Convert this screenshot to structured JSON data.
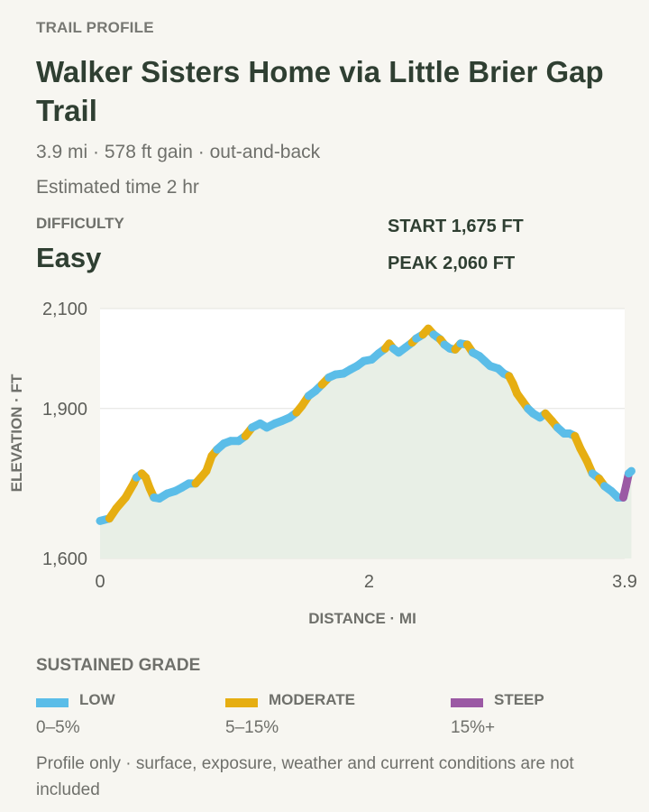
{
  "header": {
    "eyebrow": "TRAIL PROFILE",
    "title": "Walker Sisters Home via Little Brier Gap Trail",
    "summary": "3.9 mi · 578 ft gain · out-and-back",
    "time": "Estimated time 2 hr"
  },
  "difficulty": {
    "label": "DIFFICULTY",
    "value": "Easy"
  },
  "stats": {
    "start": "START 1,675 FT",
    "peak": "PEAK 2,060 FT"
  },
  "chart_data": {
    "type": "line",
    "title": "",
    "xlabel": "DISTANCE · MI",
    "ylabel": "ELEVATION · FT",
    "xlim": [
      0,
      3.9
    ],
    "ylim": [
      1600,
      2100
    ],
    "x_ticks": [
      0,
      2,
      3.9
    ],
    "x_tick_labels": [
      "0",
      "2",
      "3.9"
    ],
    "y_ticks": [
      1600,
      1900,
      2100
    ],
    "y_tick_labels": [
      "1,600",
      "1,900",
      "2,100"
    ],
    "grid": true,
    "area_fill": true,
    "series": [
      {
        "values": [
          {
            "x": 0.0,
            "y": 1675
          },
          {
            "x": 0.07,
            "y": 1680
          },
          {
            "x": 0.12,
            "y": 1700
          },
          {
            "x": 0.19,
            "y": 1722
          },
          {
            "x": 0.25,
            "y": 1750
          },
          {
            "x": 0.27,
            "y": 1762
          },
          {
            "x": 0.31,
            "y": 1770
          },
          {
            "x": 0.34,
            "y": 1762
          },
          {
            "x": 0.37,
            "y": 1740
          },
          {
            "x": 0.4,
            "y": 1722
          },
          {
            "x": 0.44,
            "y": 1720
          },
          {
            "x": 0.5,
            "y": 1730
          },
          {
            "x": 0.56,
            "y": 1735
          },
          {
            "x": 0.61,
            "y": 1742
          },
          {
            "x": 0.66,
            "y": 1750
          },
          {
            "x": 0.71,
            "y": 1750
          },
          {
            "x": 0.75,
            "y": 1762
          },
          {
            "x": 0.79,
            "y": 1775
          },
          {
            "x": 0.83,
            "y": 1805
          },
          {
            "x": 0.87,
            "y": 1818
          },
          {
            "x": 0.92,
            "y": 1830
          },
          {
            "x": 0.97,
            "y": 1835
          },
          {
            "x": 1.03,
            "y": 1835
          },
          {
            "x": 1.08,
            "y": 1845
          },
          {
            "x": 1.13,
            "y": 1862
          },
          {
            "x": 1.19,
            "y": 1870
          },
          {
            "x": 1.24,
            "y": 1862
          },
          {
            "x": 1.3,
            "y": 1870
          },
          {
            "x": 1.35,
            "y": 1875
          },
          {
            "x": 1.41,
            "y": 1882
          },
          {
            "x": 1.46,
            "y": 1892
          },
          {
            "x": 1.5,
            "y": 1905
          },
          {
            "x": 1.55,
            "y": 1925
          },
          {
            "x": 1.6,
            "y": 1935
          },
          {
            "x": 1.65,
            "y": 1948
          },
          {
            "x": 1.7,
            "y": 1962
          },
          {
            "x": 1.75,
            "y": 1968
          },
          {
            "x": 1.81,
            "y": 1970
          },
          {
            "x": 1.86,
            "y": 1978
          },
          {
            "x": 1.91,
            "y": 1985
          },
          {
            "x": 1.96,
            "y": 1995
          },
          {
            "x": 2.02,
            "y": 1998
          },
          {
            "x": 2.07,
            "y": 2010
          },
          {
            "x": 2.12,
            "y": 2020
          },
          {
            "x": 2.15,
            "y": 2030
          },
          {
            "x": 2.18,
            "y": 2020
          },
          {
            "x": 2.22,
            "y": 2012
          },
          {
            "x": 2.27,
            "y": 2022
          },
          {
            "x": 2.32,
            "y": 2032
          },
          {
            "x": 2.35,
            "y": 2040
          },
          {
            "x": 2.4,
            "y": 2048
          },
          {
            "x": 2.44,
            "y": 2060
          },
          {
            "x": 2.48,
            "y": 2048
          },
          {
            "x": 2.53,
            "y": 2038
          },
          {
            "x": 2.56,
            "y": 2028
          },
          {
            "x": 2.6,
            "y": 2020
          },
          {
            "x": 2.64,
            "y": 2018
          },
          {
            "x": 2.68,
            "y": 2030
          },
          {
            "x": 2.73,
            "y": 2028
          },
          {
            "x": 2.77,
            "y": 2012
          },
          {
            "x": 2.82,
            "y": 2005
          },
          {
            "x": 2.86,
            "y": 1995
          },
          {
            "x": 2.9,
            "y": 1985
          },
          {
            "x": 2.96,
            "y": 1980
          },
          {
            "x": 3.0,
            "y": 1970
          },
          {
            "x": 3.04,
            "y": 1965
          },
          {
            "x": 3.07,
            "y": 1950
          },
          {
            "x": 3.1,
            "y": 1930
          },
          {
            "x": 3.14,
            "y": 1915
          },
          {
            "x": 3.18,
            "y": 1900
          },
          {
            "x": 3.22,
            "y": 1890
          },
          {
            "x": 3.27,
            "y": 1882
          },
          {
            "x": 3.31,
            "y": 1890
          },
          {
            "x": 3.36,
            "y": 1875
          },
          {
            "x": 3.4,
            "y": 1862
          },
          {
            "x": 3.45,
            "y": 1850
          },
          {
            "x": 3.49,
            "y": 1850
          },
          {
            "x": 3.53,
            "y": 1845
          },
          {
            "x": 3.57,
            "y": 1820
          },
          {
            "x": 3.62,
            "y": 1795
          },
          {
            "x": 3.66,
            "y": 1770
          },
          {
            "x": 3.71,
            "y": 1760
          },
          {
            "x": 3.75,
            "y": 1745
          },
          {
            "x": 3.8,
            "y": 1735
          },
          {
            "x": 3.85,
            "y": 1722
          },
          {
            "x": 3.89,
            "y": 1722
          },
          {
            "x": 3.91,
            "y": 1745
          },
          {
            "x": 3.93,
            "y": 1770
          },
          {
            "x": 3.95,
            "y": 1775
          }
        ]
      }
    ]
  },
  "legend": {
    "title": "SUSTAINED GRADE",
    "items": [
      {
        "label": "LOW",
        "range": "0–5%",
        "color": "#5bbde8"
      },
      {
        "label": "MODERATE",
        "range": "5–15%",
        "color": "#e6ae12"
      },
      {
        "label": "STEEP",
        "range": "15%+",
        "color": "#9b59a4"
      }
    ]
  },
  "note": "Profile only · surface, exposure, weather and current conditions are not included"
}
